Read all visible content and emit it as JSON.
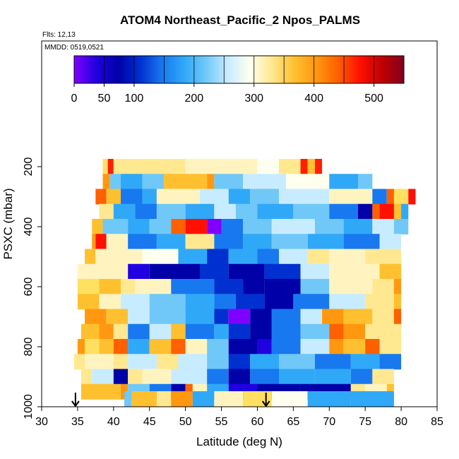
{
  "chart_data": {
    "type": "heatmap",
    "title": "ATOM4 Northeast_Pacific_2 Npos_PALMS",
    "flights_label": "Flts: 12,13",
    "dates_label": "MMDD: 0519,0521",
    "xlabel": "Latitude (deg N)",
    "ylabel": "PSXC (mbar)",
    "xlim": [
      30,
      85
    ],
    "ylim": [
      1000,
      0
    ],
    "x_ticks": [
      "30",
      "35",
      "40",
      "45",
      "50",
      "55",
      "60",
      "65",
      "70",
      "75",
      "80",
      "85"
    ],
    "y_ticks": [
      "200",
      "400",
      "600",
      "800",
      "1000"
    ],
    "colorbar": {
      "range": [
        0,
        550
      ],
      "ticks": [
        "0",
        "50",
        "100",
        "200",
        "300",
        "400",
        "500"
      ],
      "colors": [
        "#8000ff",
        "#2000e0",
        "#0000a8",
        "#0030d0",
        "#1878f0",
        "#30a8f8",
        "#70c8f8",
        "#c8ecff",
        "#fffff0",
        "#ffe890",
        "#ffc030",
        "#ff9810",
        "#ff6000",
        "#ff1000",
        "#c00000",
        "#800020"
      ]
    },
    "markers_latitude": [
      34.7,
      61.2
    ],
    "bands": [
      {
        "p": 200,
        "segments": [
          [
            38.5,
            "#ffe060"
          ],
          [
            39.2,
            "#ff2000"
          ],
          [
            40,
            "#ffe890"
          ],
          [
            50,
            "#fff4c0"
          ],
          [
            60,
            "#fffff0"
          ],
          [
            63,
            "#ffe890"
          ],
          [
            66,
            "#ff2000"
          ],
          [
            67,
            "#ffc030"
          ],
          [
            68,
            "#ff2000"
          ],
          [
            69
          ]
        ]
      },
      {
        "p": 250,
        "segments": [
          [
            38.5,
            "#ff9810"
          ],
          [
            39.5,
            "#70c8f8"
          ],
          [
            41,
            "#30a8f8"
          ],
          [
            44,
            "#70c8f8"
          ],
          [
            47,
            "#ffc030"
          ],
          [
            53,
            "#ff9810"
          ],
          [
            54,
            "#70c8f8"
          ],
          [
            58,
            "#c8ecff"
          ],
          [
            64,
            "#fffff0"
          ],
          [
            70,
            "#30a8f8"
          ],
          [
            74,
            "#70c8f8"
          ],
          [
            76
          ]
        ]
      },
      {
        "p": 300,
        "segments": [
          [
            37.5,
            "#ff6000"
          ],
          [
            39,
            "#ffc030"
          ],
          [
            41,
            "#1878f0"
          ],
          [
            44,
            "#30a8f8"
          ],
          [
            46,
            "#fff4c0"
          ],
          [
            52,
            "#c8ecff"
          ],
          [
            56,
            "#30a8f8"
          ],
          [
            59,
            "#70c8f8"
          ],
          [
            63,
            "#c8ecff"
          ],
          [
            70,
            "#fff4c0"
          ],
          [
            76,
            "#1878f0"
          ],
          [
            78,
            "#ff6000"
          ],
          [
            79,
            "#ffe060"
          ],
          [
            81,
            "#ff1000"
          ],
          [
            82
          ]
        ]
      },
      {
        "p": 350,
        "segments": [
          [
            38,
            "#ffe890"
          ],
          [
            40,
            "#30a8f8"
          ],
          [
            43,
            "#1878f0"
          ],
          [
            46,
            "#70c8f8"
          ],
          [
            50,
            "#30a8f8"
          ],
          [
            54,
            "#c8ecff"
          ],
          [
            57,
            "#70c8f8"
          ],
          [
            60,
            "#30a8f8"
          ],
          [
            65,
            "#70c8f8"
          ],
          [
            70,
            "#1878f0"
          ],
          [
            74,
            "#0000a8"
          ],
          [
            76,
            "#ff6000"
          ],
          [
            77,
            "#ff1000"
          ],
          [
            79,
            "#ffc030"
          ],
          [
            80,
            "#30a8f8"
          ],
          [
            81
          ]
        ]
      },
      {
        "p": 400,
        "segments": [
          [
            37,
            "#ffc030"
          ],
          [
            38.5,
            "#70c8f8"
          ],
          [
            42,
            "#30a8f8"
          ],
          [
            45,
            "#70c8f8"
          ],
          [
            48,
            "#ff6000"
          ],
          [
            50,
            "#ff1000"
          ],
          [
            53,
            "#8000ff"
          ],
          [
            55,
            "#1878f0"
          ],
          [
            58,
            "#70c8f8"
          ],
          [
            62,
            "#c8ecff"
          ],
          [
            68,
            "#70c8f8"
          ],
          [
            72,
            "#30a8f8"
          ],
          [
            76,
            "#c8ecff"
          ],
          [
            79,
            "#70c8f8"
          ],
          [
            81
          ]
        ]
      },
      {
        "p": 450,
        "segments": [
          [
            37,
            "#ff9810"
          ],
          [
            37.5,
            "#ff1000"
          ],
          [
            39,
            "#fff4c0"
          ],
          [
            42,
            "#1878f0"
          ],
          [
            46,
            "#30a8f8"
          ],
          [
            50,
            "#ffe890"
          ],
          [
            54,
            "#1878f0"
          ],
          [
            58,
            "#30a8f8"
          ],
          [
            62,
            "#70c8f8"
          ],
          [
            67,
            "#30a8f8"
          ],
          [
            72,
            "#1878f0"
          ],
          [
            77,
            "#c8ecff"
          ],
          [
            80
          ]
        ]
      },
      {
        "p": 500,
        "segments": [
          [
            36,
            "#ffc030"
          ],
          [
            37.5,
            "#fff4c0"
          ],
          [
            44,
            "#fffff0"
          ],
          [
            49,
            "#30a8f8"
          ],
          [
            53,
            "#0030d0"
          ],
          [
            56,
            "#30a8f8"
          ],
          [
            60,
            "#1878f0"
          ],
          [
            63,
            "#c8ecff"
          ],
          [
            67,
            "#ffe890"
          ],
          [
            70,
            "#fff4c0"
          ],
          [
            75,
            "#ffe890"
          ],
          [
            80
          ]
        ]
      },
      {
        "p": 550,
        "segments": [
          [
            35,
            "#fff4c0"
          ],
          [
            42,
            "#2000e0"
          ],
          [
            45,
            "#0000a8"
          ],
          [
            52,
            "#0030d0"
          ],
          [
            56,
            "#0000a8"
          ],
          [
            61,
            "#0030d0"
          ],
          [
            66,
            "#c8ecff"
          ],
          [
            70,
            "#fff4c0"
          ],
          [
            77,
            "#ffc030"
          ],
          [
            80
          ]
        ]
      },
      {
        "p": 600,
        "segments": [
          [
            35,
            "#ffe060"
          ],
          [
            38,
            "#ffc030"
          ],
          [
            41,
            "#ffe890"
          ],
          [
            43,
            "#fff4c0"
          ],
          [
            48,
            "#1878f0"
          ],
          [
            54,
            "#0030d0"
          ],
          [
            58,
            "#0000a8"
          ],
          [
            61,
            "#0000a8"
          ],
          [
            66,
            "#70c8f8"
          ],
          [
            70,
            "#fff4c0"
          ],
          [
            76,
            "#ffe890"
          ],
          [
            79,
            "#ff9810"
          ],
          [
            80
          ]
        ]
      },
      {
        "p": 650,
        "segments": [
          [
            35,
            "#ffc030"
          ],
          [
            38,
            "#fff4c0"
          ],
          [
            41,
            "#c8ecff"
          ],
          [
            45,
            "#70c8f8"
          ],
          [
            50,
            "#30a8f8"
          ],
          [
            54,
            "#1878f0"
          ],
          [
            57,
            "#0030d0"
          ],
          [
            61,
            "#0000a8"
          ],
          [
            65,
            "#1878f0"
          ],
          [
            70,
            "#c8ecff"
          ],
          [
            75,
            "#ffe890"
          ],
          [
            79,
            "#ffc030"
          ],
          [
            80
          ]
        ]
      },
      {
        "p": 700,
        "segments": [
          [
            36,
            "#ff9810"
          ],
          [
            39,
            "#ffc030"
          ],
          [
            42,
            "#c8ecff"
          ],
          [
            45,
            "#70c8f8"
          ],
          [
            50,
            "#30a8f8"
          ],
          [
            54,
            "#0030d0"
          ],
          [
            56,
            "#8000ff"
          ],
          [
            59,
            "#0000a8"
          ],
          [
            62,
            "#1878f0"
          ],
          [
            66,
            "#c8ecff"
          ],
          [
            69,
            "#ff9810"
          ],
          [
            72,
            "#ffc030"
          ],
          [
            76,
            "#ffe890"
          ],
          [
            79,
            "#ff6000"
          ],
          [
            80
          ]
        ]
      },
      {
        "p": 750,
        "segments": [
          [
            35.5,
            "#ffc030"
          ],
          [
            38,
            "#ff9810"
          ],
          [
            40,
            "#ffe890"
          ],
          [
            42,
            "#1878f0"
          ],
          [
            45,
            "#c8ecff"
          ],
          [
            48,
            "#ffc030"
          ],
          [
            50,
            "#1878f0"
          ],
          [
            54,
            "#30a8f8"
          ],
          [
            56,
            "#0030d0"
          ],
          [
            59,
            "#0000a8"
          ],
          [
            62,
            "#1878f0"
          ],
          [
            66,
            "#70c8f8"
          ],
          [
            70,
            "#ff6000"
          ],
          [
            72,
            "#ff9810"
          ],
          [
            75,
            "#ffe890"
          ],
          [
            80
          ]
        ]
      },
      {
        "p": 800,
        "segments": [
          [
            35,
            "#ff9810"
          ],
          [
            36,
            "#ffe060"
          ],
          [
            38,
            "#ffc030"
          ],
          [
            40,
            "#ff6000"
          ],
          [
            42,
            "#30a8f8"
          ],
          [
            45,
            "#ffc030"
          ],
          [
            48,
            "#ff6000"
          ],
          [
            50,
            "#fff4c0"
          ],
          [
            53,
            "#70c8f8"
          ],
          [
            56,
            "#0000a8"
          ],
          [
            60,
            "#2000e0"
          ],
          [
            62,
            "#1878f0"
          ],
          [
            66,
            "#c8ecff"
          ],
          [
            70,
            "#ff9810"
          ],
          [
            72,
            "#ffc030"
          ],
          [
            75,
            "#ff6000"
          ],
          [
            77,
            "#ffe890"
          ],
          [
            80
          ]
        ]
      },
      {
        "p": 850,
        "segments": [
          [
            34.5,
            "#ffe890"
          ],
          [
            36,
            "#fff4c0"
          ],
          [
            40,
            "#ffe890"
          ],
          [
            42,
            "#c8ecff"
          ],
          [
            46,
            "#ffe890"
          ],
          [
            49,
            "#c8ecff"
          ],
          [
            53,
            "#70c8f8"
          ],
          [
            56,
            "#0030d0"
          ],
          [
            59,
            "#30a8f8"
          ],
          [
            63,
            "#70c8f8"
          ],
          [
            68,
            "#1878f0"
          ],
          [
            73,
            "#30a8f8"
          ],
          [
            77,
            "#1878f0"
          ],
          [
            80
          ]
        ]
      },
      {
        "p": 900,
        "segments": [
          [
            35.5,
            "#ffe890"
          ],
          [
            37,
            "#c8ecff"
          ],
          [
            40,
            "#0000a8"
          ],
          [
            42,
            "#ffe890"
          ],
          [
            44,
            "#fff4c0"
          ],
          [
            48,
            "#c8ecff"
          ],
          [
            53,
            "#1878f0"
          ],
          [
            56,
            "#0000a8"
          ],
          [
            59,
            "#1878f0"
          ],
          [
            63,
            "#30a8f8"
          ],
          [
            68,
            "#30a8f8"
          ],
          [
            73,
            "#1878f0"
          ],
          [
            76,
            "#ffe890"
          ],
          [
            79
          ]
        ]
      },
      {
        "p": 950,
        "segments": [
          [
            35.5,
            "#ffc030"
          ],
          [
            41,
            "#ff9810"
          ],
          [
            42,
            "#70c8f8"
          ],
          [
            45,
            "#1878f0"
          ],
          [
            48,
            "#0000a8"
          ],
          [
            50,
            "#ff6000"
          ],
          [
            51,
            "#fff4c0"
          ],
          [
            53,
            "#30a8f8"
          ],
          [
            56,
            "#2000e0"
          ],
          [
            60,
            "#0000a8"
          ],
          [
            66,
            "#0000a8"
          ],
          [
            73,
            "#ffe890"
          ],
          [
            75,
            "#fff4c0"
          ],
          [
            78,
            "#ffc030"
          ],
          [
            79
          ]
        ]
      },
      {
        "p": 995,
        "segments": [
          [
            41.5,
            "#70c8f8"
          ],
          [
            42.5,
            "#ffc030"
          ],
          [
            46,
            "#ffe890"
          ],
          [
            48,
            "#ff9810"
          ],
          [
            51,
            "#30a8f8"
          ],
          [
            54,
            "#fff4c0"
          ],
          [
            58,
            "#ffe060"
          ],
          [
            62,
            "#fffff0"
          ],
          [
            67,
            "#30a8f8"
          ],
          [
            73,
            "#30a8f8"
          ],
          [
            79
          ]
        ]
      }
    ]
  }
}
